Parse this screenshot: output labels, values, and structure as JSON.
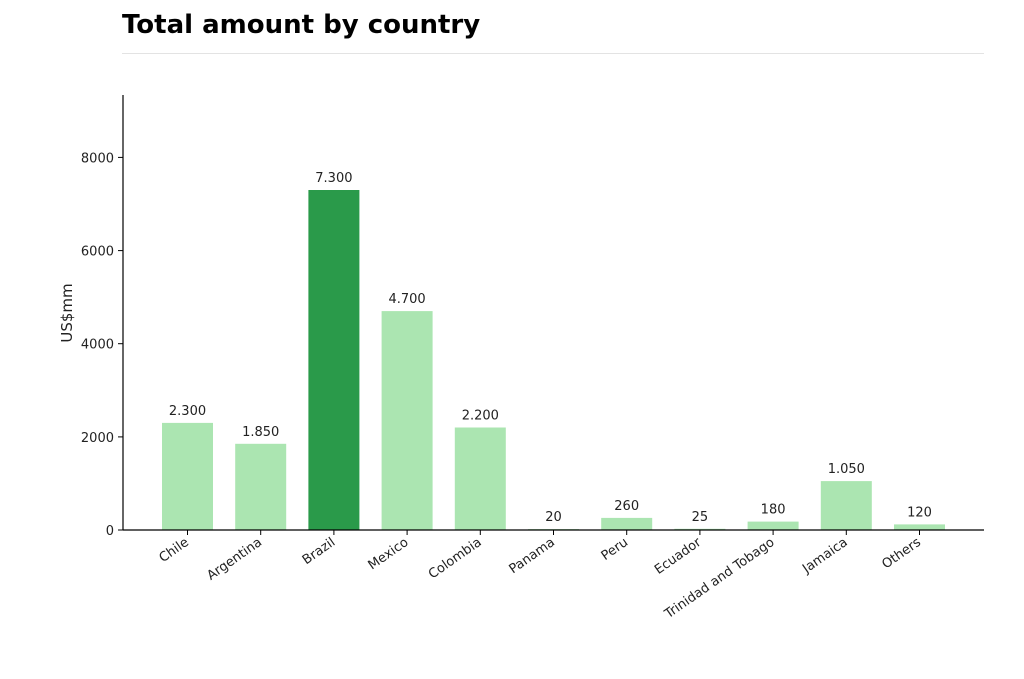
{
  "title": "Total amount by country",
  "chart_data": {
    "type": "bar",
    "title": "Total amount by country",
    "xlabel": "",
    "ylabel": "US$mm",
    "categories": [
      "Chile",
      "Argentina",
      "Brazil",
      "Mexico",
      "Colombia",
      "Panama",
      "Peru",
      "Ecuador",
      "Trinidad and Tobago",
      "Jamaica",
      "Others"
    ],
    "values": [
      2300,
      1850,
      7300,
      4700,
      2200,
      20,
      260,
      25,
      180,
      1050,
      120
    ],
    "data_labels": [
      "2.300",
      "1.850",
      "7.300",
      "4.700",
      "2.200",
      "20",
      "260",
      "25",
      "180",
      "1.050",
      "120"
    ],
    "yticks": [
      0,
      2000,
      4000,
      6000,
      8000
    ],
    "ytick_labels": [
      "0",
      "2000",
      "4000",
      "6000",
      "8000"
    ],
    "ylim": [
      0,
      9340
    ],
    "highlight_category": "Brazil",
    "colors": {
      "bar": "#abe5b1",
      "highlight": "#2a9a4a",
      "axis": "#000000"
    },
    "grid": false,
    "legend": "none"
  }
}
